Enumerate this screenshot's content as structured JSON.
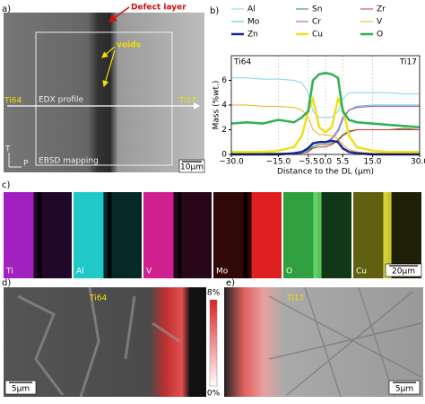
{
  "panels": {
    "a": {
      "letter": "a)",
      "defect": "Defect layer",
      "voids": "voids",
      "left": "Ti64",
      "right": "Ti17",
      "edx": "EDX profile",
      "ebsd": "EBSD mapping",
      "t": "T",
      "p": "P",
      "scale": "10μm"
    },
    "b": {
      "letter": "b)"
    },
    "c": {
      "letter": "c)",
      "maps": [
        "Ti",
        "Al",
        "V",
        "Mo",
        "O",
        "Cu"
      ],
      "scale": "20μm"
    },
    "d": {
      "letter": "d)",
      "label": "Ti64",
      "scale": "5μm",
      "colorbar": [
        "8%",
        "0%"
      ]
    },
    "e": {
      "letter": "e)",
      "label": "Ti17",
      "scale": "5μm"
    }
  },
  "chart_data": {
    "type": "line",
    "xlabel": "Distance to the DL (μm)",
    "ylabel": "Mass (%wt.)",
    "left_label": "Ti64",
    "right_label": "Ti17",
    "x": [
      -30,
      -25,
      -20,
      -15,
      -10,
      -7.5,
      -5.5,
      -4,
      -2,
      0,
      2,
      4,
      5.5,
      7.5,
      10,
      15,
      20,
      25,
      30
    ],
    "xlim": [
      -30,
      30
    ],
    "xticks": [
      {
        "value": -30,
        "label": "−30.0"
      },
      {
        "value": -15,
        "label": "−15.0"
      },
      {
        "value": -5.5,
        "label": "−5.5"
      },
      {
        "value": 0,
        "label": "0.0"
      },
      {
        "value": 5.5,
        "label": "5.5"
      },
      {
        "value": 15,
        "label": "15.0"
      },
      {
        "value": 30,
        "label": "30.0"
      }
    ],
    "ylim": [
      0,
      8
    ],
    "yticks": [
      0,
      2,
      4,
      6
    ],
    "grid": true,
    "series": [
      {
        "name": "Al",
        "color": "#7fd4f0",
        "linewidth": 1,
        "values": [
          6.2,
          6.2,
          6.1,
          6.1,
          6.0,
          5.8,
          5.0,
          3.5,
          3.0,
          3.0,
          3.0,
          3.5,
          4.5,
          5.0,
          5.0,
          5.0,
          5.0,
          4.9,
          4.9
        ]
      },
      {
        "name": "Sn",
        "color": "#2e8b3a",
        "linewidth": 1,
        "values": [
          0.1,
          0.1,
          0.1,
          0.1,
          0.1,
          0.2,
          0.3,
          0.6,
          0.8,
          0.8,
          0.9,
          1.2,
          1.6,
          1.9,
          2.0,
          2.0,
          2.0,
          2.0,
          2.0
        ]
      },
      {
        "name": "Zr",
        "color": "#e03030",
        "linewidth": 1,
        "values": [
          0.0,
          0.0,
          0.0,
          0.0,
          0.0,
          0.1,
          0.2,
          0.5,
          0.6,
          0.6,
          0.8,
          1.1,
          1.5,
          1.8,
          2.0,
          2.0,
          2.0,
          2.1,
          2.0
        ]
      },
      {
        "name": "Mo",
        "color": "#40c8b8",
        "linewidth": 1,
        "values": [
          0.0,
          0.0,
          0.0,
          0.0,
          0.1,
          0.1,
          0.3,
          0.8,
          1.0,
          1.0,
          1.2,
          1.8,
          2.8,
          3.6,
          3.9,
          4.0,
          4.0,
          4.0,
          4.0
        ]
      },
      {
        "name": "Cr",
        "color": "#b040c0",
        "linewidth": 1,
        "values": [
          0.0,
          0.0,
          0.0,
          0.0,
          0.1,
          0.2,
          0.4,
          0.9,
          1.0,
          1.0,
          1.3,
          2.0,
          3.0,
          3.6,
          3.8,
          3.9,
          3.9,
          3.9,
          3.9
        ]
      },
      {
        "name": "V",
        "color": "#e8b020",
        "linewidth": 1,
        "values": [
          4.0,
          4.0,
          3.9,
          3.9,
          3.8,
          3.6,
          3.0,
          2.0,
          1.6,
          1.6,
          1.5,
          1.3,
          0.8,
          0.4,
          0.2,
          0.1,
          0.1,
          0.1,
          0.1
        ]
      },
      {
        "name": "Zn",
        "color": "#1a2a9a",
        "linewidth": 2.5,
        "values": [
          0.0,
          0.0,
          0.0,
          0.0,
          0.1,
          0.2,
          0.5,
          0.9,
          1.0,
          1.0,
          1.1,
          1.0,
          0.5,
          0.2,
          0.1,
          0.0,
          0.0,
          0.0,
          0.0
        ]
      },
      {
        "name": "Cu",
        "color": "#f0e020",
        "linewidth": 2.5,
        "values": [
          0.2,
          0.2,
          0.2,
          0.3,
          0.6,
          1.5,
          3.5,
          4.5,
          2.2,
          1.8,
          2.2,
          4.5,
          3.8,
          1.5,
          0.6,
          0.3,
          0.2,
          0.2,
          0.2
        ]
      },
      {
        "name": "O",
        "color": "#30b050",
        "linewidth": 2.5,
        "values": [
          2.5,
          2.6,
          2.5,
          2.8,
          2.6,
          3.0,
          3.5,
          6.0,
          6.5,
          6.6,
          6.5,
          6.2,
          3.5,
          2.8,
          2.6,
          2.5,
          2.4,
          2.3,
          2.2
        ]
      }
    ]
  }
}
